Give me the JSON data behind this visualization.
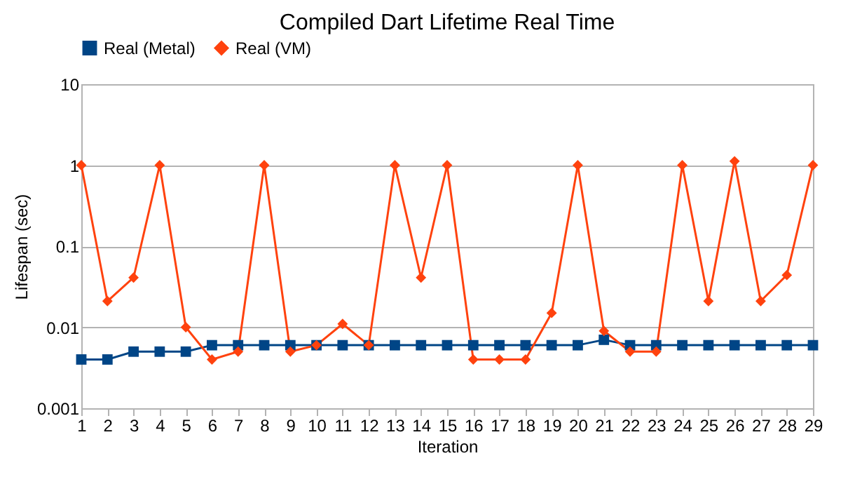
{
  "chart_data": {
    "type": "line",
    "title": "Compiled Dart Lifetime Real Time",
    "xlabel": "Iteration",
    "ylabel": "Lifespan (sec)",
    "x": [
      1,
      2,
      3,
      4,
      5,
      6,
      7,
      8,
      9,
      10,
      11,
      12,
      13,
      14,
      15,
      16,
      17,
      18,
      19,
      20,
      21,
      22,
      23,
      24,
      25,
      26,
      27,
      28,
      29
    ],
    "xlim": [
      1,
      29
    ],
    "xticks": [
      1,
      2,
      3,
      4,
      5,
      6,
      7,
      8,
      9,
      10,
      11,
      12,
      13,
      14,
      15,
      16,
      17,
      18,
      19,
      20,
      21,
      22,
      23,
      24,
      25,
      26,
      27,
      28,
      29
    ],
    "ylim": [
      0.001,
      10
    ],
    "yticks": [
      0.001,
      0.01,
      0.1,
      1,
      10
    ],
    "log": "y",
    "grid": "y",
    "legend": "top",
    "series": [
      {
        "name": "Real (Metal)",
        "color": "#004586",
        "marker": "square",
        "values": [
          0.004,
          0.004,
          0.005,
          0.005,
          0.005,
          0.006,
          0.006,
          0.006,
          0.006,
          0.006,
          0.006,
          0.006,
          0.006,
          0.006,
          0.006,
          0.006,
          0.006,
          0.006,
          0.006,
          0.006,
          0.007,
          0.006,
          0.006,
          0.006,
          0.006,
          0.006,
          0.006,
          0.006,
          0.006
        ]
      },
      {
        "name": "Real (VM)",
        "color": "#ff420e",
        "marker": "diamond",
        "values": [
          1,
          0.021,
          0.041,
          1,
          0.01,
          0.004,
          0.005,
          1,
          0.005,
          0.006,
          0.011,
          0.006,
          1,
          0.041,
          1,
          0.004,
          0.004,
          0.004,
          0.015,
          1,
          0.009,
          0.005,
          0.005,
          1,
          0.021,
          1.12,
          0.021,
          0.044,
          1
        ]
      }
    ]
  }
}
